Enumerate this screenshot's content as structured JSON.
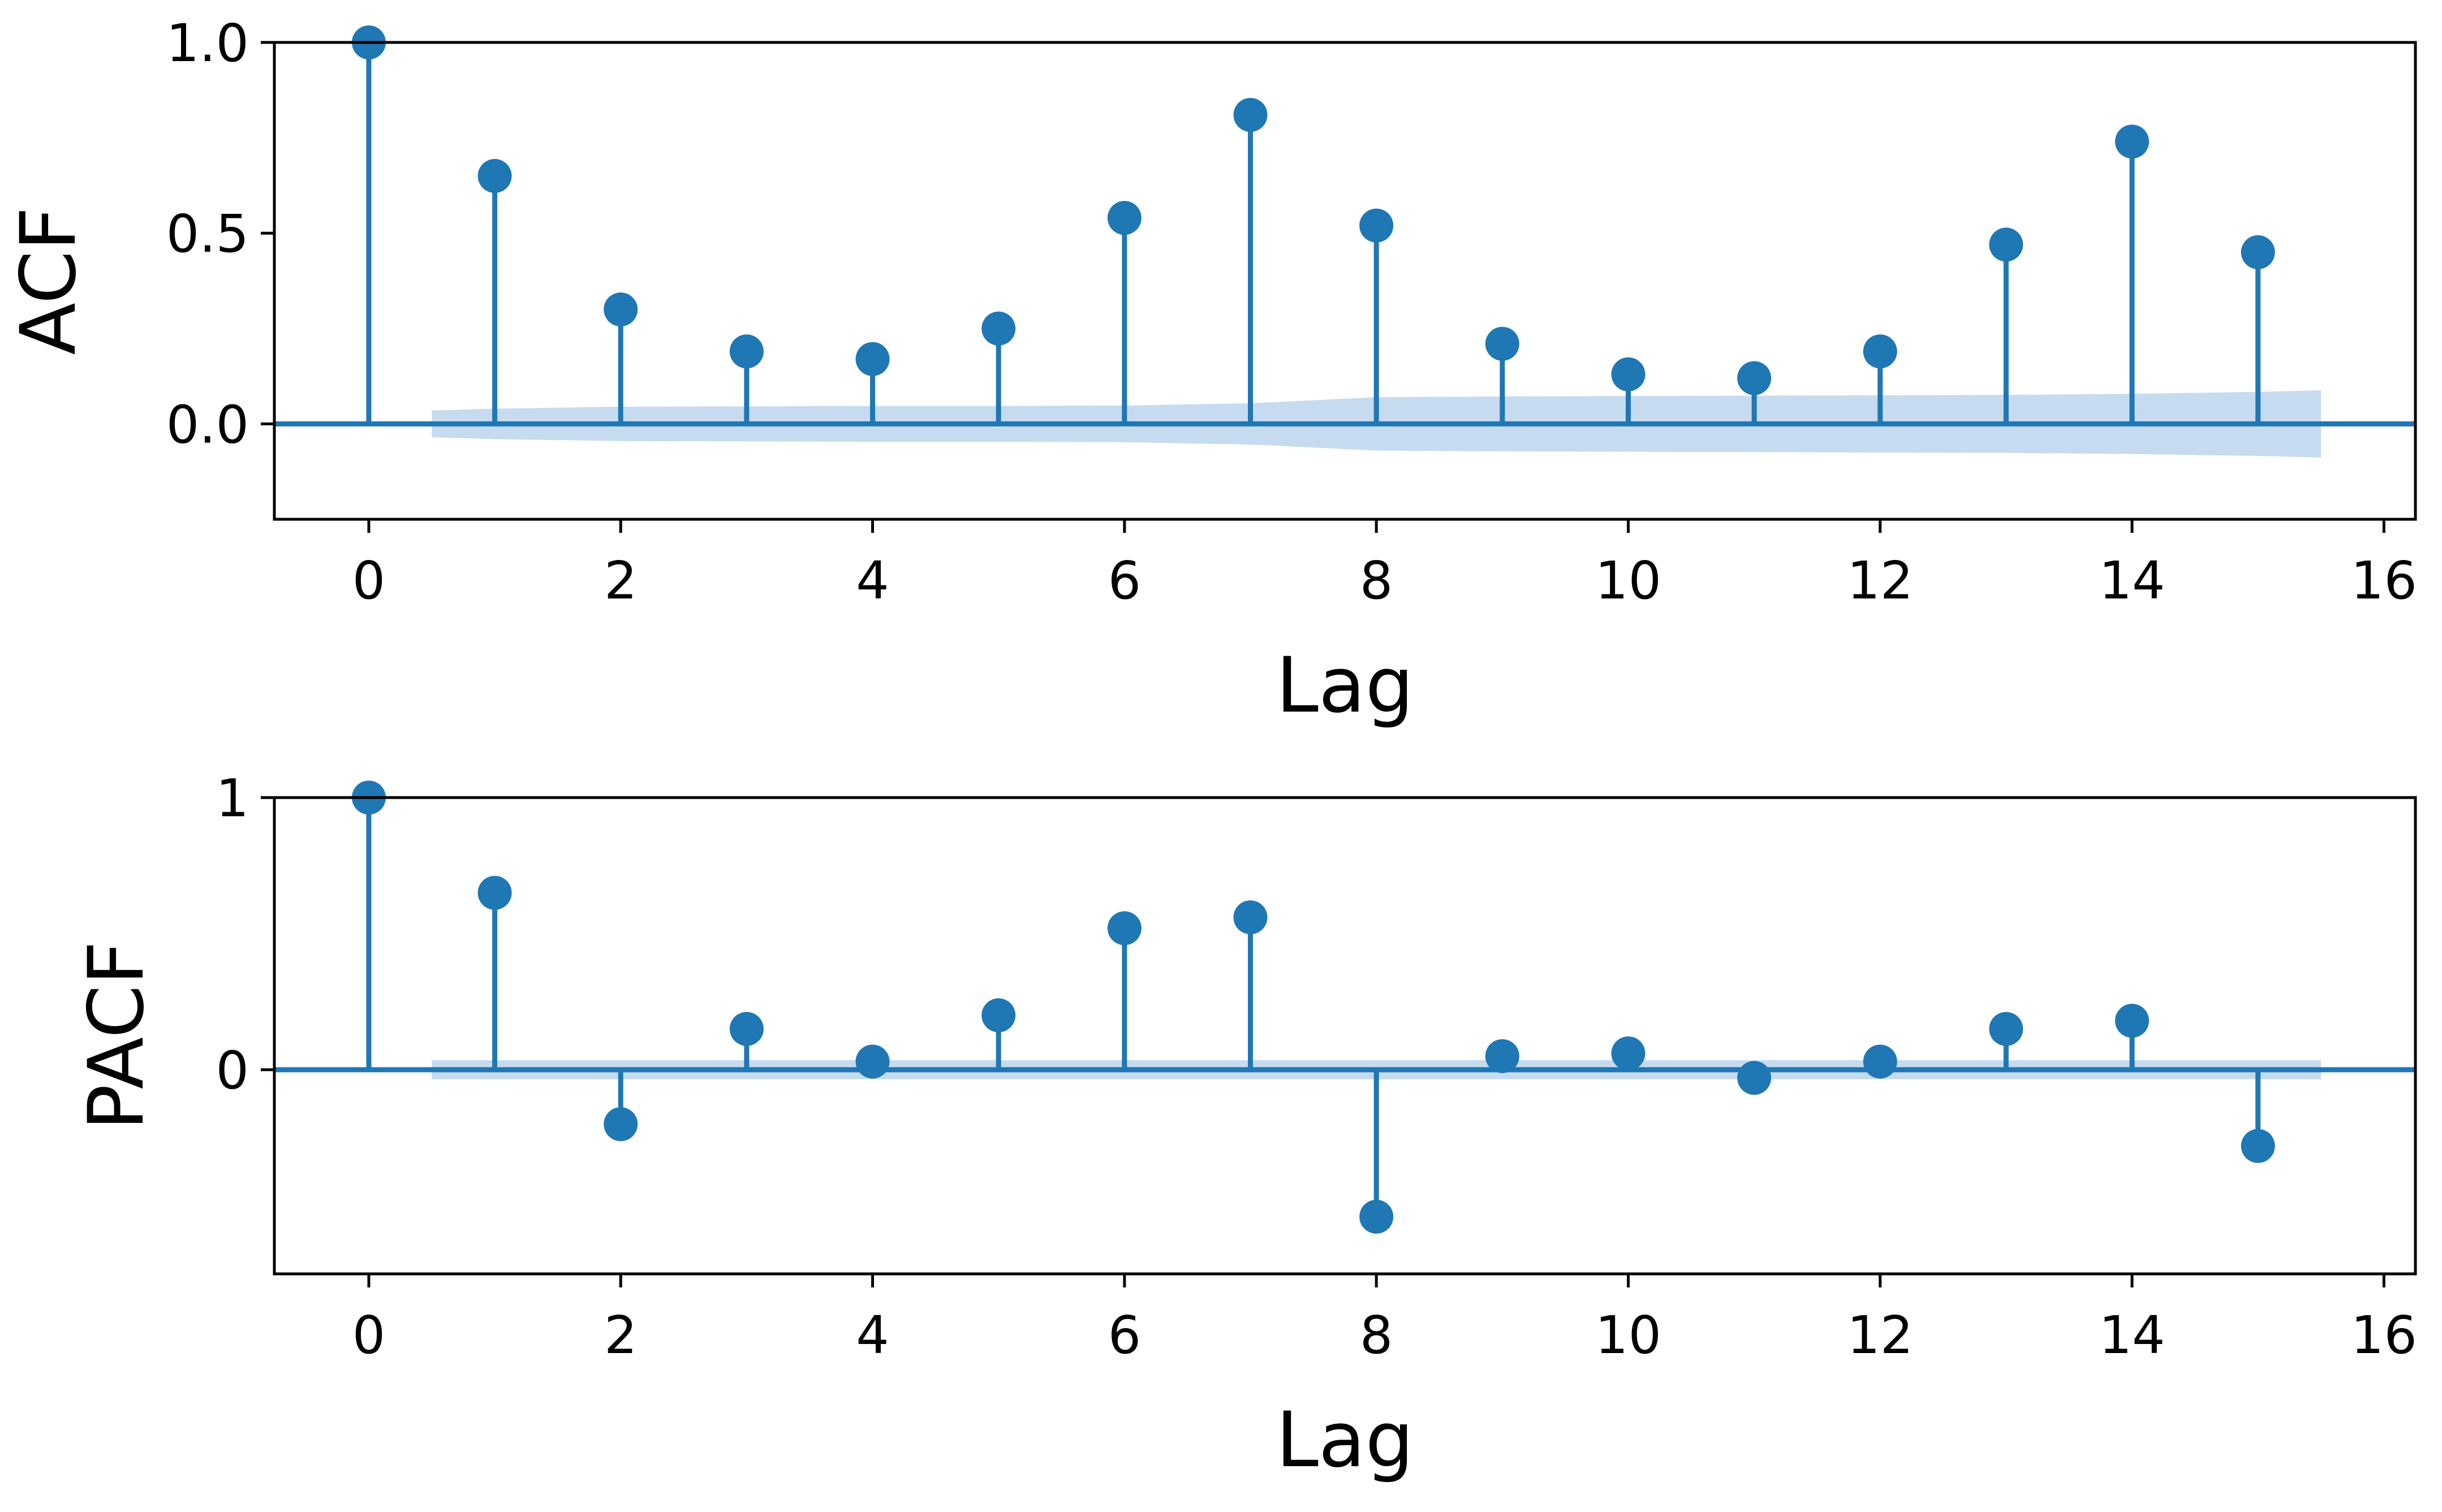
{
  "colors": {
    "series": "#1f77b4",
    "confidence_band": "#c6dbef",
    "axes": "#000000",
    "background": "#ffffff"
  },
  "chart_data": [
    {
      "type": "stem",
      "ylabel": "ACF",
      "xlabel": "Lag",
      "xlim": [
        -0.75,
        16.25
      ],
      "ylim": [
        -0.25,
        1.0
      ],
      "xticks": [
        0,
        2,
        4,
        6,
        8,
        10,
        12,
        14,
        16
      ],
      "x_tick_labels": [
        "0",
        "2",
        "4",
        "6",
        "8",
        "10",
        "12",
        "14",
        "16"
      ],
      "yticks": [
        0.0,
        0.5,
        1.0
      ],
      "y_tick_labels": [
        "0.0",
        "0.5",
        "1.0"
      ],
      "grid": false,
      "lags": [
        0,
        1,
        2,
        3,
        4,
        5,
        6,
        7,
        8,
        9,
        10,
        11,
        12,
        13,
        14,
        15
      ],
      "values": [
        1.0,
        0.65,
        0.3,
        0.19,
        0.17,
        0.25,
        0.54,
        0.81,
        0.52,
        0.21,
        0.13,
        0.12,
        0.19,
        0.47,
        0.74,
        0.45
      ],
      "confidence_band": {
        "x": [
          0.5,
          1,
          2,
          3,
          4,
          5,
          6,
          7,
          8,
          9,
          10,
          11,
          12,
          13,
          14,
          15,
          15.5
        ],
        "upper": [
          0.035,
          0.04,
          0.045,
          0.046,
          0.047,
          0.047,
          0.048,
          0.054,
          0.07,
          0.072,
          0.073,
          0.074,
          0.075,
          0.076,
          0.079,
          0.084,
          0.088
        ],
        "lower": [
          -0.035,
          -0.04,
          -0.045,
          -0.046,
          -0.047,
          -0.047,
          -0.048,
          -0.054,
          -0.07,
          -0.072,
          -0.073,
          -0.074,
          -0.075,
          -0.076,
          -0.079,
          -0.084,
          -0.088
        ]
      }
    },
    {
      "type": "stem",
      "ylabel": "PACF",
      "xlabel": "Lag",
      "xlim": [
        -0.75,
        16.25
      ],
      "ylim": [
        -0.75,
        1.0
      ],
      "xticks": [
        0,
        2,
        4,
        6,
        8,
        10,
        12,
        14,
        16
      ],
      "x_tick_labels": [
        "0",
        "2",
        "4",
        "6",
        "8",
        "10",
        "12",
        "14",
        "16"
      ],
      "yticks": [
        0,
        1
      ],
      "y_tick_labels": [
        "0",
        "1"
      ],
      "grid": false,
      "lags": [
        0,
        1,
        2,
        3,
        4,
        5,
        6,
        7,
        8,
        9,
        10,
        11,
        12,
        13,
        14,
        15
      ],
      "values": [
        1.0,
        0.65,
        -0.2,
        0.15,
        0.03,
        0.2,
        0.52,
        0.56,
        -0.54,
        0.05,
        0.06,
        -0.03,
        0.03,
        0.15,
        0.18,
        -0.28
      ],
      "confidence_band": {
        "x": [
          0.5,
          15.5
        ],
        "upper": [
          0.035,
          0.035
        ],
        "lower": [
          -0.035,
          -0.035
        ]
      }
    }
  ]
}
